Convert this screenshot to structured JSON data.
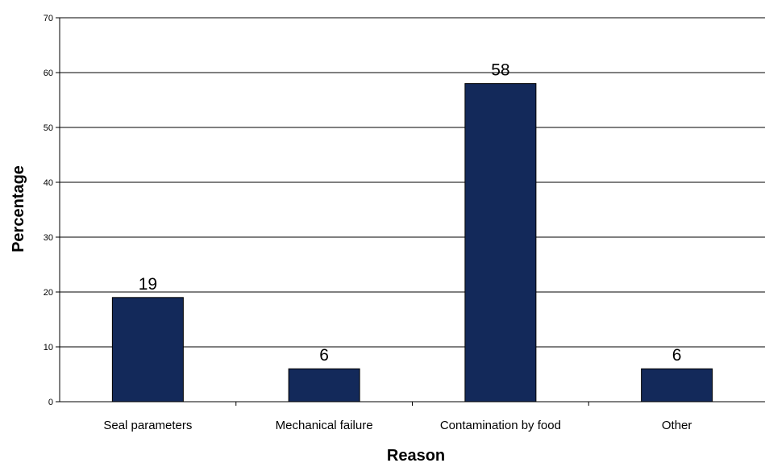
{
  "chart_data": {
    "type": "bar",
    "title": "",
    "xlabel": "Reason",
    "ylabel": "Percentage",
    "categories": [
      "Seal parameters",
      "Mechanical failure",
      "Contamination by food",
      "Other"
    ],
    "values": [
      19,
      6,
      58,
      6
    ],
    "data_labels": [
      "19",
      "6",
      "58",
      "6"
    ],
    "ylim": [
      0,
      70
    ],
    "yticks": [
      0,
      10,
      20,
      30,
      40,
      50,
      60,
      70
    ],
    "grid": true,
    "legend": "none",
    "bar_color": "#13295a"
  }
}
